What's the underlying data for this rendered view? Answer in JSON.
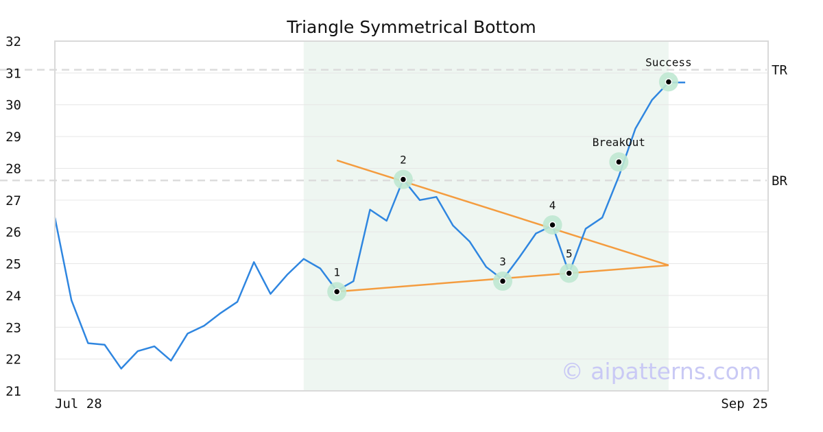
{
  "chart_data": {
    "type": "line",
    "title": "Triangle Symmetrical Bottom",
    "xlabel": "",
    "ylabel": "",
    "ylim": [
      21,
      32
    ],
    "yticks": [
      21,
      22,
      23,
      24,
      25,
      26,
      27,
      28,
      29,
      30,
      31,
      32
    ],
    "x_tick_labels": [
      {
        "index": 0,
        "label": "Jul 28"
      },
      {
        "index": 43,
        "label": "Sep 25"
      }
    ],
    "grid": "horizontal",
    "series": [
      {
        "color": "#2f86e0",
        "values": [
          26.45,
          23.85,
          22.5,
          22.45,
          21.7,
          22.25,
          22.4,
          21.95,
          22.8,
          23.05,
          23.45,
          23.8,
          25.05,
          24.05,
          24.65,
          25.15,
          24.85,
          24.15,
          24.45,
          26.7,
          26.35,
          27.65,
          27.0,
          27.1,
          26.2,
          25.7,
          24.9,
          24.5,
          25.2,
          25.95,
          26.2,
          24.7,
          26.1,
          26.45,
          27.75,
          29.25,
          30.15,
          30.7,
          30.7
        ]
      }
    ],
    "shaded_region": {
      "start_index": 15,
      "end_index": 37,
      "color": "#eef6f1"
    },
    "horizontal_lines": [
      {
        "label": "TR",
        "value": 31.1
      },
      {
        "label": "BR",
        "value": 27.62
      }
    ],
    "trendlines": [
      {
        "color": "#f49c3f",
        "from": {
          "index": 17,
          "value": 28.25
        },
        "to": {
          "index": 37,
          "value": 24.95
        }
      },
      {
        "color": "#f49c3f",
        "from": {
          "index": 17,
          "value": 24.12
        },
        "to": {
          "index": 37,
          "value": 24.95
        }
      }
    ],
    "markers": [
      {
        "label": "1",
        "index": 17,
        "value": 24.12
      },
      {
        "label": "2",
        "index": 21,
        "value": 27.65
      },
      {
        "label": "3",
        "index": 27,
        "value": 24.45
      },
      {
        "label": "4",
        "index": 30,
        "value": 26.22
      },
      {
        "label": "5",
        "index": 31,
        "value": 24.7
      },
      {
        "label": "BreakOut",
        "index": 34,
        "value": 28.2
      },
      {
        "label": "Success",
        "index": 37,
        "value": 30.72
      }
    ],
    "marker_color": "#bfe8d2"
  },
  "watermark": "© aipatterns.com"
}
